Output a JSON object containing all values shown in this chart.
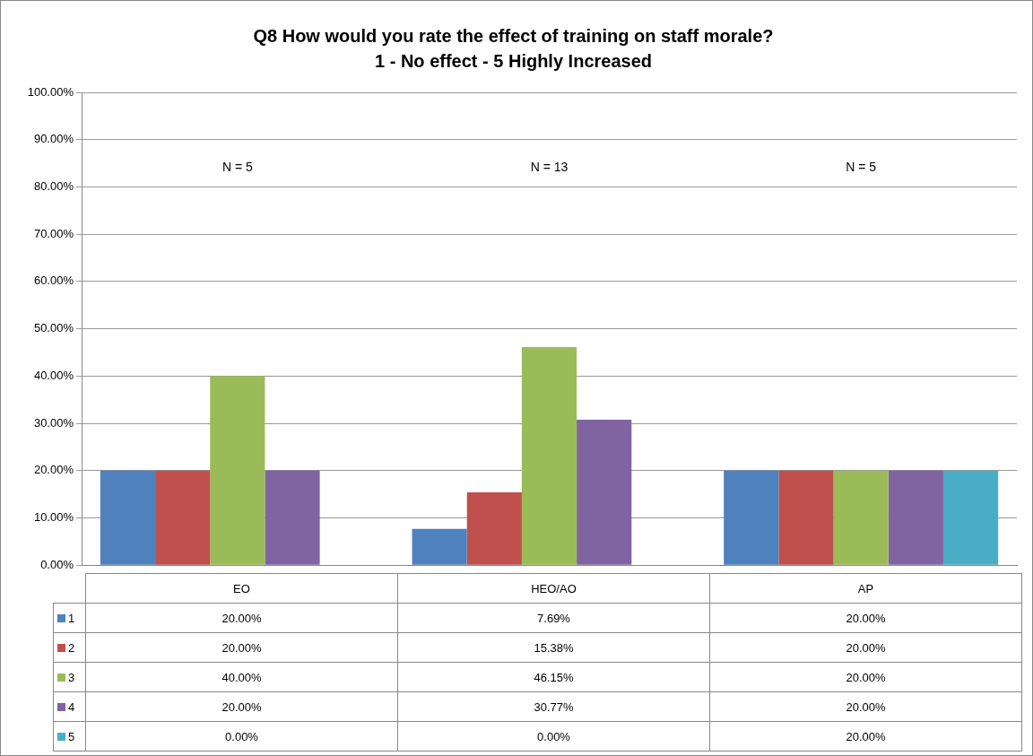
{
  "chart_data": {
    "type": "bar",
    "title": "Q8 How would you rate the effect of training on staff morale?",
    "subtitle": "1 - No effect - 5 Highly Increased",
    "categories": [
      "EO",
      "HEO/AO",
      "AP"
    ],
    "series": [
      {
        "name": "1",
        "color": "#4f81bd",
        "values": [
          20,
          7.69,
          20
        ],
        "value_labels": [
          "20.00%",
          "7.69%",
          "20.00%"
        ]
      },
      {
        "name": "2",
        "color": "#c0504d",
        "values": [
          20,
          15.38,
          20
        ],
        "value_labels": [
          "20.00%",
          "15.38%",
          "20.00%"
        ]
      },
      {
        "name": "3",
        "color": "#9bbb59",
        "values": [
          40,
          46.15,
          20
        ],
        "value_labels": [
          "40.00%",
          "46.15%",
          "20.00%"
        ]
      },
      {
        "name": "4",
        "color": "#8064a2",
        "values": [
          20,
          30.77,
          20
        ],
        "value_labels": [
          "20.00%",
          "30.77%",
          "20.00%"
        ]
      },
      {
        "name": "5",
        "color": "#4bacc6",
        "values": [
          0,
          0,
          20
        ],
        "value_labels": [
          "0.00%",
          "0.00%",
          "20.00%"
        ]
      }
    ],
    "ylim": [
      0,
      100
    ],
    "yticks": [
      {
        "value": 0,
        "label": "0.00%"
      },
      {
        "value": 10,
        "label": "10.00%"
      },
      {
        "value": 20,
        "label": "20.00%"
      },
      {
        "value": 30,
        "label": "30.00%"
      },
      {
        "value": 40,
        "label": "40.00%"
      },
      {
        "value": 50,
        "label": "50.00%"
      },
      {
        "value": 60,
        "label": "60.00%"
      },
      {
        "value": 70,
        "label": "70.00%"
      },
      {
        "value": 80,
        "label": "80.00%"
      },
      {
        "value": 90,
        "label": "90.00%"
      },
      {
        "value": 100,
        "label": "100.00%"
      }
    ],
    "grid": "y",
    "legend": "bottom",
    "annotations": [
      "N = 5",
      "N = 13",
      "N = 5"
    ]
  }
}
